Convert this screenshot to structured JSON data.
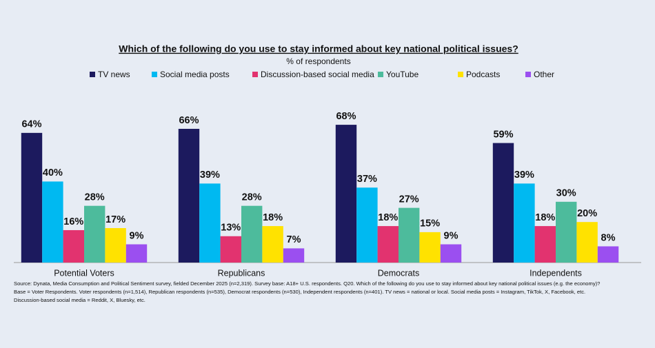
{
  "chart_data": {
    "type": "bar",
    "title": "Which of the following do you use to stay informed about key national political issues?",
    "subtitle": "% of respondents",
    "categories": [
      "Potential Voters",
      "Republicans",
      "Democrats",
      "Independents"
    ],
    "series": [
      {
        "name": "TV news",
        "color": "#1c1a5e",
        "values": [
          64,
          66,
          68,
          59
        ],
        "value_labels": [
          "64%",
          "66%",
          "68%",
          "59%"
        ]
      },
      {
        "name": "Social media posts",
        "color": "#00b9f1",
        "values": [
          40,
          39,
          37,
          39
        ],
        "value_labels": [
          "40%",
          "39%",
          "37%",
          "39%"
        ]
      },
      {
        "name": "Discussion-based social media",
        "color": "#e2336f",
        "values": [
          16,
          13,
          18,
          18
        ],
        "value_labels": [
          "16%",
          "13%",
          "18%",
          "18%"
        ]
      },
      {
        "name": "YouTube",
        "color": "#4dbb9c",
        "values": [
          28,
          28,
          27,
          30
        ],
        "value_labels": [
          "28%",
          "28%",
          "27%",
          "30%"
        ]
      },
      {
        "name": "Podcasts",
        "color": "#ffe200",
        "values": [
          17,
          18,
          15,
          20
        ],
        "value_labels": [
          "17%",
          "18%",
          "15%",
          "20%"
        ]
      },
      {
        "name": "Other",
        "color": "#9b4ff0",
        "values": [
          9,
          7,
          9,
          8
        ],
        "value_labels": [
          "9%",
          "7%",
          "9%",
          "8%"
        ]
      }
    ],
    "footnote": [
      "Source: Dynata, Media Consumption and Political Sentiment survey, fielded December 2025 (n=2,319). Survey base: A18+ U.S. respondents. Q20. Which of the following do you use to stay informed about key national political issues (e.g. the economy)?",
      "Base = Voter Respondents. Voter respondents (n=1,514), Republican respondents (n=535), Democrat respondents (n=530), Independent respondents (n=401). TV news = national or local. Social media posts = Instagram, TikTok, X, Facebook, etc.",
      "Discussion-based social media = Reddit, X, Bluesky, etc."
    ]
  }
}
